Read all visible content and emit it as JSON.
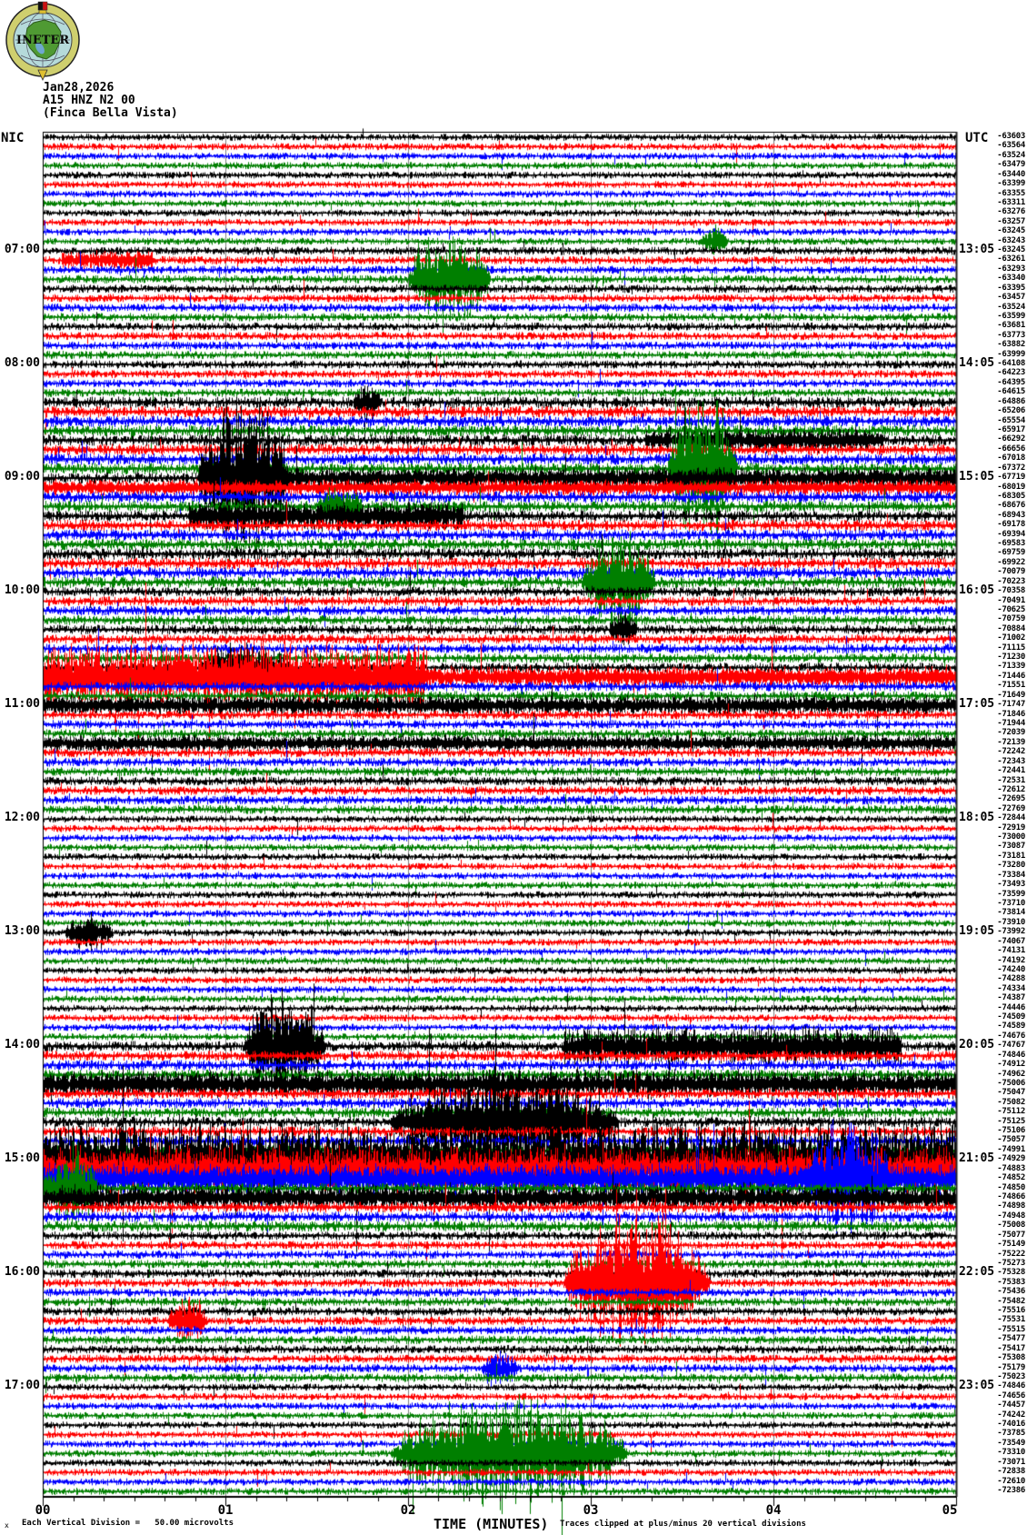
{
  "header": {
    "date": "Jan28,2026",
    "station": "A15 HNZ N2 00",
    "site": "(Finca Bella Vista)"
  },
  "logo": {
    "text": "INETER"
  },
  "footer": {
    "units_glyph": "x",
    "left_note": "Each Vertical Division =   50.00 microvolts",
    "right_note": "Traces clipped at plus/minus 20 vertical divisions"
  },
  "chart_data": {
    "type": "line",
    "subtype": "helicorder-seismogram",
    "title": "A15 HNZ N2 00 (Finca Bella Vista) Jan28,2026",
    "x_axis": {
      "label": "TIME (MINUTES)",
      "ticks": [
        "00",
        "01",
        "02",
        "03",
        "04",
        "05"
      ],
      "minutes_per_line": 5,
      "minor_ticks_per_minute": 6,
      "grid": "on"
    },
    "left_axis": {
      "header": "NIC",
      "times": [
        "07:00",
        "08:00",
        "09:00",
        "10:00",
        "11:00",
        "12:00",
        "13:00",
        "14:00",
        "15:00",
        "16:00",
        "17:00"
      ],
      "first_label_trace": 13,
      "label_every": 12
    },
    "right_axis": {
      "header": "UTC",
      "times": [
        "13:05",
        "14:05",
        "15:05",
        "16:05",
        "17:05",
        "18:05",
        "19:05",
        "20:05",
        "21:05",
        "22:05",
        "23:05"
      ],
      "first_label_trace": 13,
      "label_every": 12
    },
    "trace_count": 144,
    "color_cycle": [
      "#000000",
      "#ff0000",
      "#0000ff",
      "#007f00"
    ],
    "grid_color": "#808080",
    "clip_divisions": 20,
    "bias_values": [
      -63603,
      -63564,
      -63524,
      -63479,
      -63440,
      -63399,
      -63355,
      -63311,
      -63276,
      -63257,
      -63245,
      -63243,
      -63245,
      -63261,
      -63293,
      -63340,
      -63395,
      -63457,
      -63524,
      -63599,
      -63681,
      -63773,
      -63882,
      -63999,
      -64108,
      -64223,
      -64395,
      -64615,
      -64886,
      -65206,
      -65554,
      -65917,
      -66292,
      -66656,
      -67018,
      -67372,
      -67719,
      -68019,
      -68305,
      -68676,
      -68943,
      -69178,
      -69394,
      -69583,
      -69759,
      -69922,
      -70079,
      -70223,
      -70358,
      -70491,
      -70625,
      -70759,
      -70884,
      -71002,
      -71115,
      -71230,
      -71339,
      -71446,
      -71551,
      -71649,
      -71747,
      -71846,
      -71944,
      -72039,
      -72139,
      -72242,
      -72343,
      -72441,
      -72531,
      -72612,
      -72695,
      -72769,
      -72844,
      -72919,
      -73000,
      -73087,
      -73181,
      -73280,
      -73384,
      -73493,
      -73599,
      -73710,
      -73814,
      -73910,
      -73992,
      -74067,
      -74131,
      -74192,
      -74240,
      -74288,
      -74334,
      -74387,
      -74446,
      -74509,
      -74589,
      -74676,
      -74767,
      -74846,
      -74912,
      -74962,
      -75006,
      -75047,
      -75082,
      -75112,
      -75125,
      -75106,
      -75057,
      -74991,
      -74929,
      -74883,
      -74852,
      -74850,
      -74866,
      -74898,
      -74948,
      -75008,
      -75077,
      -75149,
      -75222,
      -75273,
      -75328,
      -75383,
      -75436,
      -75482,
      -75516,
      -75531,
      -75515,
      -75477,
      -75417,
      -75308,
      -75179,
      -75023,
      -74846,
      -74656,
      -74457,
      -74242,
      -74016,
      -73785,
      -73549,
      -73310,
      -73071,
      -72838,
      -72610,
      -72386
    ],
    "noise_profile": [
      {
        "from": 1,
        "to": 12,
        "mult": 1.0
      },
      {
        "from": 13,
        "to": 28,
        "mult": 1.15
      },
      {
        "from": 29,
        "to": 48,
        "mult": 1.6
      },
      {
        "from": 49,
        "to": 60,
        "mult": 1.35
      },
      {
        "from": 61,
        "to": 72,
        "mult": 1.25
      },
      {
        "from": 73,
        "to": 96,
        "mult": 1.0
      },
      {
        "from": 97,
        "to": 108,
        "mult": 1.45
      },
      {
        "from": 109,
        "to": 116,
        "mult": 1.5
      },
      {
        "from": 117,
        "to": 132,
        "mult": 1.2
      },
      {
        "from": 133,
        "to": 144,
        "mult": 1.0
      }
    ],
    "events": [
      {
        "trace": 12,
        "start_min": 3.6,
        "end_min": 3.75,
        "amplitude": 18,
        "kind": "burst"
      },
      {
        "trace": 14,
        "start_min": 0.1,
        "end_min": 0.6,
        "amplitude": 10,
        "kind": "band"
      },
      {
        "trace": 16,
        "start_min": 2.0,
        "end_min": 2.45,
        "amplitude": 55,
        "kind": "burst"
      },
      {
        "trace": 29,
        "start_min": 1.7,
        "end_min": 1.85,
        "amplitude": 20,
        "kind": "burst"
      },
      {
        "trace": 33,
        "start_min": 3.3,
        "end_min": 4.6,
        "amplitude": 10,
        "kind": "band"
      },
      {
        "trace": 36,
        "start_min": 3.42,
        "end_min": 3.8,
        "amplitude": 90,
        "kind": "burst"
      },
      {
        "trace": 37,
        "start_min": 0.85,
        "end_min": 1.35,
        "amplitude": 95,
        "kind": "burst"
      },
      {
        "trace": 37,
        "start_min": 1.35,
        "end_min": 5,
        "amplitude": 9,
        "kind": "band"
      },
      {
        "trace": 38,
        "start_min": 0,
        "end_min": 5,
        "amplitude": 5,
        "kind": "band"
      },
      {
        "trace": 40,
        "start_min": 1.5,
        "end_min": 1.75,
        "amplitude": 25,
        "kind": "burst"
      },
      {
        "trace": 41,
        "start_min": 0.8,
        "end_min": 2.3,
        "amplitude": 14,
        "kind": "band"
      },
      {
        "trace": 48,
        "start_min": 2.95,
        "end_min": 3.35,
        "amplitude": 60,
        "kind": "burst"
      },
      {
        "trace": 53,
        "start_min": 3.1,
        "end_min": 3.25,
        "amplitude": 25,
        "kind": "burst"
      },
      {
        "trace": 57,
        "start_min": 0.85,
        "end_min": 1.35,
        "amplitude": 30,
        "kind": "burst"
      },
      {
        "trace": 58,
        "start_min": 0,
        "end_min": 2.1,
        "amplitude": 40,
        "kind": "band"
      },
      {
        "trace": 58,
        "start_min": 2.1,
        "end_min": 5,
        "amplitude": 10,
        "kind": "band"
      },
      {
        "trace": 61,
        "start_min": 0,
        "end_min": 5,
        "amplitude": 9,
        "kind": "band"
      },
      {
        "trace": 65,
        "start_min": 0,
        "end_min": 5,
        "amplitude": 7,
        "kind": "band"
      },
      {
        "trace": 85,
        "start_min": 0.12,
        "end_min": 0.38,
        "amplitude": 22,
        "kind": "burst"
      },
      {
        "trace": 97,
        "start_min": 1.1,
        "end_min": 1.55,
        "amplitude": 65,
        "kind": "burst"
      },
      {
        "trace": 97,
        "start_min": 2.85,
        "end_min": 4.7,
        "amplitude": 22,
        "kind": "band"
      },
      {
        "trace": 101,
        "start_min": 0,
        "end_min": 5,
        "amplitude": 13,
        "kind": "band"
      },
      {
        "trace": 105,
        "start_min": 1.9,
        "end_min": 3.15,
        "amplitude": 55,
        "kind": "burst"
      },
      {
        "trace": 109,
        "start_min": 0,
        "end_min": 5,
        "amplitude": 48,
        "kind": "band"
      },
      {
        "trace": 110,
        "start_min": 0,
        "end_min": 5,
        "amplitude": 26,
        "kind": "band"
      },
      {
        "trace": 111,
        "start_min": 0,
        "end_min": 5,
        "amplitude": 16,
        "kind": "band"
      },
      {
        "trace": 111,
        "start_min": 4.15,
        "end_min": 4.65,
        "amplitude": 65,
        "kind": "burst"
      },
      {
        "trace": 112,
        "start_min": 0,
        "end_min": 0.3,
        "amplitude": 45,
        "kind": "burst"
      },
      {
        "trace": 113,
        "start_min": 0,
        "end_min": 5,
        "amplitude": 11,
        "kind": "band"
      },
      {
        "trace": 122,
        "start_min": 2.85,
        "end_min": 3.65,
        "amplitude": 85,
        "kind": "burst"
      },
      {
        "trace": 126,
        "start_min": 0.68,
        "end_min": 0.9,
        "amplitude": 28,
        "kind": "burst"
      },
      {
        "trace": 131,
        "start_min": 2.4,
        "end_min": 2.6,
        "amplitude": 20,
        "kind": "burst"
      },
      {
        "trace": 140,
        "start_min": 1.9,
        "end_min": 3.2,
        "amplitude": 70,
        "kind": "burst"
      }
    ]
  }
}
